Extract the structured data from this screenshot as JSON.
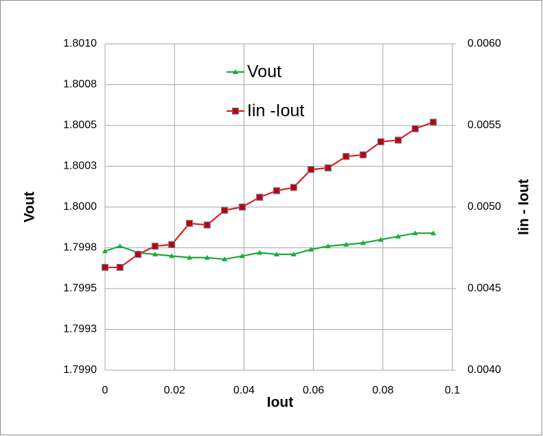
{
  "chart_data": {
    "type": "line",
    "x_label": "Iout",
    "y_label": "Vout",
    "y2_label": "Iin - Iout",
    "x": [
      0,
      0.0043,
      0.0095,
      0.0144,
      0.0192,
      0.0243,
      0.0294,
      0.0344,
      0.0395,
      0.0445,
      0.0494,
      0.0543,
      0.0593,
      0.0642,
      0.0694,
      0.0743,
      0.0794,
      0.0844,
      0.0893,
      0.0945
    ],
    "series": [
      {
        "name": "Vout",
        "color": "#1aaa3c",
        "marker": "triangle",
        "values": [
          1.79973,
          1.79976,
          1.79972,
          1.79971,
          1.7997,
          1.79969,
          1.79969,
          1.79968,
          1.7997,
          1.79972,
          1.79971,
          1.79971,
          1.79974,
          1.79976,
          1.79977,
          1.79978,
          1.7998,
          1.79982,
          1.79984,
          1.79984
        ]
      },
      {
        "name": "Iin -Iout",
        "color": "#e01b1b",
        "marker": "square",
        "axis": "y2",
        "values": [
          0.00463,
          0.00463,
          0.00471,
          0.00476,
          0.00477,
          0.0049,
          0.00489,
          0.00498,
          0.005,
          0.00506,
          0.0051,
          0.00512,
          0.00523,
          0.00524,
          0.00531,
          0.00532,
          0.0054,
          0.00541,
          0.00548,
          0.00552
        ]
      }
    ],
    "xlim": [
      0,
      0.1
    ],
    "xticks": [
      0,
      0.02,
      0.04,
      0.06,
      0.08,
      0.1
    ],
    "ylim": [
      1.799,
      1.801
    ],
    "yticks": [
      {
        "value": 1.799,
        "label": "1.7990"
      },
      {
        "value": 1.79925,
        "label": "1.7993"
      },
      {
        "value": 1.7995,
        "label": "1.7995"
      },
      {
        "value": 1.79975,
        "label": "1.7998"
      },
      {
        "value": 1.8,
        "label": "1.8000"
      },
      {
        "value": 1.80025,
        "label": "1.8003"
      },
      {
        "value": 1.8005,
        "label": "1.8005"
      },
      {
        "value": 1.80075,
        "label": "1.8008"
      },
      {
        "value": 1.801,
        "label": "1.8010"
      }
    ],
    "y2lim": [
      0.004,
      0.006
    ],
    "y2ticks": [
      {
        "value": 0.004,
        "label": "0.0040"
      },
      {
        "value": 0.0045,
        "label": "0.0045"
      },
      {
        "value": 0.005,
        "label": "0.0050"
      },
      {
        "value": 0.0055,
        "label": "0.0055"
      },
      {
        "value": 0.006,
        "label": "0.0060"
      }
    ],
    "grid": true,
    "legend": "top-center"
  }
}
